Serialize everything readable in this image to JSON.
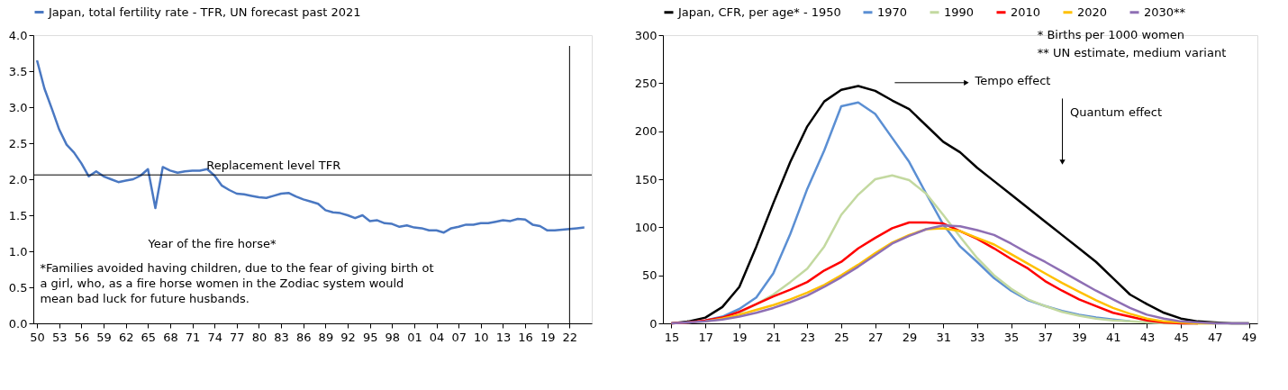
{
  "chart_data": [
    {
      "type": "line",
      "legend": "top",
      "x": [
        1950,
        1951,
        1952,
        1953,
        1954,
        1955,
        1956,
        1957,
        1958,
        1959,
        1960,
        1961,
        1962,
        1963,
        1964,
        1965,
        1966,
        1967,
        1968,
        1969,
        1970,
        1971,
        1972,
        1973,
        1974,
        1975,
        1976,
        1977,
        1978,
        1979,
        1980,
        1981,
        1982,
        1983,
        1984,
        1985,
        1986,
        1987,
        1988,
        1989,
        1990,
        1991,
        1992,
        1993,
        1994,
        1995,
        1996,
        1997,
        1998,
        1999,
        2000,
        2001,
        2002,
        2003,
        2004,
        2005,
        2006,
        2007,
        2008,
        2009,
        2010,
        2011,
        2012,
        2013,
        2014,
        2015,
        2016,
        2017,
        2018,
        2019,
        2020,
        2021,
        2022,
        2023,
        2024
      ],
      "series": [
        {
          "name": "Japan, total fertility rate - TFR, UN forecast past 2021",
          "color": "#4a78c2",
          "values": [
            3.65,
            3.26,
            2.98,
            2.69,
            2.48,
            2.37,
            2.22,
            2.04,
            2.11,
            2.04,
            2.0,
            1.96,
            1.98,
            2.0,
            2.05,
            2.14,
            1.6,
            2.17,
            2.12,
            2.09,
            2.11,
            2.12,
            2.12,
            2.14,
            2.05,
            1.91,
            1.85,
            1.8,
            1.79,
            1.77,
            1.75,
            1.74,
            1.77,
            1.8,
            1.81,
            1.76,
            1.72,
            1.69,
            1.66,
            1.57,
            1.54,
            1.53,
            1.5,
            1.46,
            1.5,
            1.42,
            1.43,
            1.39,
            1.38,
            1.34,
            1.36,
            1.33,
            1.32,
            1.29,
            1.29,
            1.26,
            1.32,
            1.34,
            1.37,
            1.37,
            1.39,
            1.39,
            1.41,
            1.43,
            1.42,
            1.45,
            1.44,
            1.37,
            1.35,
            1.29,
            1.29,
            1.3,
            1.31,
            1.32,
            1.33
          ]
        }
      ],
      "xlim": [
        1949.5,
        2025
      ],
      "xticks": [
        {
          "value": 1950,
          "label": "50"
        },
        {
          "value": 1953,
          "label": "53"
        },
        {
          "value": 1956,
          "label": "56"
        },
        {
          "value": 1959,
          "label": "59"
        },
        {
          "value": 1962,
          "label": "62"
        },
        {
          "value": 1965,
          "label": "65"
        },
        {
          "value": 1968,
          "label": "68"
        },
        {
          "value": 1971,
          "label": "71"
        },
        {
          "value": 1974,
          "label": "74"
        },
        {
          "value": 1977,
          "label": "77"
        },
        {
          "value": 1980,
          "label": "80"
        },
        {
          "value": 1983,
          "label": "83"
        },
        {
          "value": 1986,
          "label": "86"
        },
        {
          "value": 1989,
          "label": "89"
        },
        {
          "value": 1992,
          "label": "92"
        },
        {
          "value": 1995,
          "label": "95"
        },
        {
          "value": 1998,
          "label": "98"
        },
        {
          "value": 2001,
          "label": "01"
        },
        {
          "value": 2004,
          "label": "04"
        },
        {
          "value": 2007,
          "label": "07"
        },
        {
          "value": 2010,
          "label": "10"
        },
        {
          "value": 2013,
          "label": "13"
        },
        {
          "value": 2016,
          "label": "16"
        },
        {
          "value": 2019,
          "label": "19"
        },
        {
          "value": 2022,
          "label": "22"
        }
      ],
      "ylim": [
        0,
        4
      ],
      "yticks": [
        {
          "value": 0,
          "label": "0.0"
        },
        {
          "value": 0.5,
          "label": "0.5"
        },
        {
          "value": 1,
          "label": "1.0"
        },
        {
          "value": 1.5,
          "label": "1.5"
        },
        {
          "value": 2,
          "label": "2.0"
        },
        {
          "value": 2.5,
          "label": "2.5"
        },
        {
          "value": 3,
          "label": "3.0"
        },
        {
          "value": 3.5,
          "label": "3.5"
        },
        {
          "value": 4,
          "label": "4.0"
        }
      ],
      "ref_lines": [
        {
          "axis": "y",
          "value": 2.06,
          "label": "Replacement level TFR",
          "color": "#000000"
        },
        {
          "axis": "x",
          "value": 2022,
          "label": null,
          "color": "#000000"
        }
      ],
      "annotations": [
        {
          "text": "Year of the fire horse*",
          "x": 1966,
          "y": 1.6
        },
        "*Families avoided having children, due to the fear of giving birth ot\na girl, who, as a fire horse women in the Zodiac system would\nmean bad luck for future husbands."
      ]
    },
    {
      "type": "line",
      "legend": "top",
      "x": [
        15,
        16,
        17,
        18,
        19,
        20,
        21,
        22,
        23,
        24,
        25,
        26,
        27,
        28,
        29,
        30,
        31,
        32,
        33,
        34,
        35,
        36,
        37,
        38,
        39,
        40,
        41,
        42,
        43,
        44,
        45,
        46,
        47,
        48,
        49
      ],
      "series": [
        {
          "name": "Japan, CFR, per age* - 1950",
          "color": "#000000",
          "values": [
            0,
            2,
            6,
            17,
            38,
            80,
            125,
            168,
            205,
            231,
            243,
            247,
            242,
            232,
            223,
            206,
            189,
            178,
            162,
            148,
            134,
            120,
            106,
            92,
            78,
            64,
            47,
            30,
            20,
            11,
            5,
            2,
            1,
            0,
            0
          ]
        },
        {
          "name": "1970",
          "color": "#5b8fd3",
          "values": [
            null,
            null,
            3,
            7,
            15,
            27,
            52,
            93,
            140,
            180,
            226,
            230,
            218,
            193,
            168,
            135,
            103,
            80,
            64,
            47,
            34,
            24,
            18,
            13,
            9,
            6,
            4,
            2,
            null,
            1,
            0,
            0,
            null,
            null,
            null
          ]
        },
        {
          "name": "1990",
          "color": "#c3d9a0",
          "values": [
            0,
            1,
            2,
            null,
            11,
            20,
            30,
            43,
            57,
            80,
            113,
            134,
            150,
            154,
            149,
            135,
            113,
            90,
            68,
            50,
            36,
            25,
            18,
            12,
            8,
            5,
            3,
            2,
            1,
            0,
            0,
            0,
            0,
            0,
            0
          ]
        },
        {
          "name": "2010",
          "color": "#ff0000",
          "values": [
            0,
            1,
            3,
            6,
            12,
            20,
            28,
            35,
            43,
            55,
            64,
            78,
            89,
            99,
            105,
            105,
            104,
            96,
            88,
            78,
            67,
            57,
            44,
            34,
            25,
            18,
            11,
            7,
            3,
            1,
            0,
            0,
            null,
            null,
            null
          ]
        },
        {
          "name": "2020",
          "color": "#ffc000",
          "values": [
            null,
            null,
            2,
            5,
            9,
            14,
            19,
            25,
            32,
            40,
            50,
            61,
            73,
            84,
            92,
            98,
            99,
            96,
            89,
            82,
            72,
            62,
            52,
            42,
            33,
            24,
            16,
            10,
            5,
            2,
            1,
            0,
            0,
            null,
            null
          ]
        },
        {
          "name": "2030**",
          "color": "#8e6fb4",
          "values": [
            0,
            1,
            2,
            4,
            7,
            11,
            16,
            22,
            29,
            38,
            48,
            59,
            71,
            83,
            91,
            98,
            102,
            101,
            97,
            92,
            83,
            73,
            64,
            54,
            44,
            34,
            25,
            16,
            9,
            5,
            2,
            1,
            0,
            0,
            0
          ]
        }
      ],
      "xlim": [
        14.5,
        49.5
      ],
      "xticks": [
        15,
        17,
        19,
        21,
        23,
        25,
        27,
        29,
        31,
        33,
        35,
        37,
        39,
        41,
        43,
        45,
        47,
        49
      ],
      "ylim": [
        0,
        300
      ],
      "yticks": [
        0,
        50,
        100,
        150,
        200,
        250,
        300
      ],
      "annotations": [
        "* Births per 1000 women",
        "** UN estimate, medium variant",
        "Tempo effect",
        "Quantum effect"
      ]
    }
  ]
}
